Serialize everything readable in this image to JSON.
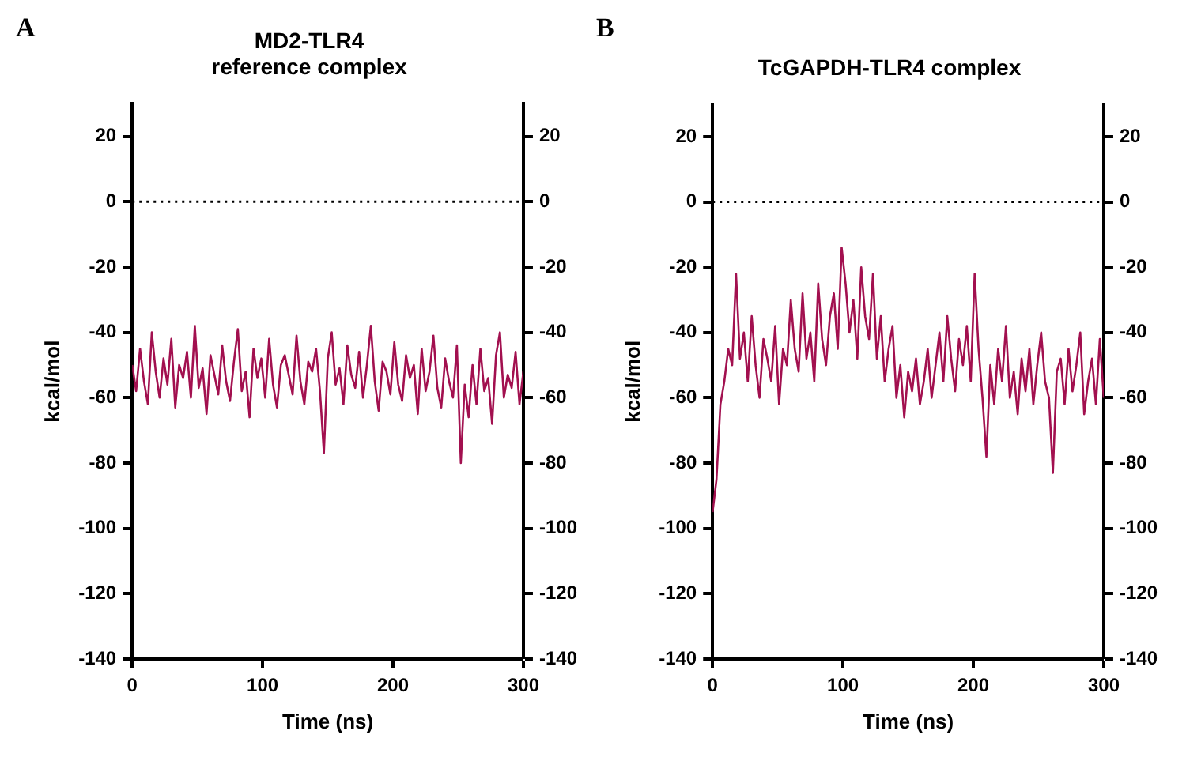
{
  "chart_data": [
    {
      "type": "line",
      "title": "MD2-TLR4\nreference complex",
      "annotations": [
        "A"
      ],
      "xlabel": "Time (ns)",
      "ylabel": "kcal/mol",
      "x": [
        0,
        3,
        6,
        9,
        12,
        15,
        18,
        21,
        24,
        27,
        30,
        33,
        36,
        39,
        42,
        45,
        48,
        51,
        54,
        57,
        60,
        63,
        66,
        69,
        72,
        75,
        78,
        81,
        84,
        87,
        90,
        93,
        96,
        99,
        102,
        105,
        108,
        111,
        114,
        117,
        120,
        123,
        126,
        129,
        132,
        135,
        138,
        141,
        144,
        147,
        150,
        153,
        156,
        159,
        162,
        165,
        168,
        171,
        174,
        177,
        180,
        183,
        186,
        189,
        192,
        195,
        198,
        201,
        204,
        207,
        210,
        213,
        216,
        219,
        222,
        225,
        228,
        231,
        234,
        237,
        240,
        243,
        246,
        249,
        252,
        255,
        258,
        261,
        264,
        267,
        270,
        273,
        276,
        279,
        282,
        285,
        288,
        291,
        294,
        297,
        300
      ],
      "series": [
        {
          "color": "#a2104f",
          "values": [
            -50,
            -58,
            -45,
            -55,
            -62,
            -40,
            -52,
            -60,
            -48,
            -56,
            -42,
            -63,
            -50,
            -54,
            -46,
            -60,
            -38,
            -57,
            -51,
            -65,
            -47,
            -53,
            -59,
            -44,
            -55,
            -61,
            -49,
            -39,
            -58,
            -52,
            -66,
            -45,
            -54,
            -48,
            -60,
            -42,
            -56,
            -63,
            -50,
            -47,
            -53,
            -59,
            -41,
            -55,
            -62,
            -49,
            -52,
            -45,
            -58,
            -77,
            -48,
            -40,
            -56,
            -51,
            -62,
            -44,
            -53,
            -57,
            -46,
            -60,
            -50,
            -38,
            -55,
            -64,
            -49,
            -52,
            -59,
            -43,
            -56,
            -61,
            -47,
            -54,
            -50,
            -65,
            -45,
            -58,
            -52,
            -41,
            -57,
            -63,
            -48,
            -55,
            -60,
            -44,
            -80,
            -56,
            -66,
            -50,
            -62,
            -45,
            -58,
            -54,
            -68,
            -47,
            -40,
            -60,
            -53,
            -57,
            -46,
            -62,
            -52
          ]
        }
      ],
      "xlim": [
        0,
        300
      ],
      "xticks": [
        0,
        100,
        200,
        300
      ],
      "ylim": [
        -140,
        30
      ],
      "yticks": [
        -140,
        -120,
        -100,
        -80,
        -60,
        -40,
        -20,
        0,
        20
      ],
      "y2lim": [
        -140,
        30
      ],
      "y2ticks": [
        -140,
        -120,
        -100,
        -80,
        -60,
        -40,
        -20,
        0,
        20
      ],
      "ref_lines": [
        {
          "axis": "y",
          "value": 0,
          "color": "#000000",
          "line_style": "dotted"
        }
      ],
      "grid": false,
      "legend": false,
      "marker": "none",
      "line_style": "solid"
    },
    {
      "type": "line",
      "title": "TcGAPDH-TLR4 complex",
      "annotations": [
        "B"
      ],
      "xlabel": "Time (ns)",
      "ylabel": "kcal/mol",
      "x": [
        0,
        3,
        6,
        9,
        12,
        15,
        18,
        21,
        24,
        27,
        30,
        33,
        36,
        39,
        42,
        45,
        48,
        51,
        54,
        57,
        60,
        63,
        66,
        69,
        72,
        75,
        78,
        81,
        84,
        87,
        90,
        93,
        96,
        99,
        102,
        105,
        108,
        111,
        114,
        117,
        120,
        123,
        126,
        129,
        132,
        135,
        138,
        141,
        144,
        147,
        150,
        153,
        156,
        159,
        162,
        165,
        168,
        171,
        174,
        177,
        180,
        183,
        186,
        189,
        192,
        195,
        198,
        201,
        204,
        207,
        210,
        213,
        216,
        219,
        222,
        225,
        228,
        231,
        234,
        237,
        240,
        243,
        246,
        249,
        252,
        255,
        258,
        261,
        264,
        267,
        270,
        273,
        276,
        279,
        282,
        285,
        288,
        291,
        294,
        297,
        300
      ],
      "series": [
        {
          "color": "#a2104f",
          "values": [
            -95,
            -85,
            -62,
            -55,
            -45,
            -50,
            -22,
            -48,
            -40,
            -55,
            -35,
            -50,
            -60,
            -42,
            -48,
            -55,
            -38,
            -62,
            -45,
            -50,
            -30,
            -45,
            -52,
            -28,
            -48,
            -40,
            -55,
            -25,
            -42,
            -50,
            -35,
            -28,
            -45,
            -14,
            -25,
            -40,
            -30,
            -48,
            -20,
            -35,
            -42,
            -22,
            -48,
            -35,
            -55,
            -45,
            -38,
            -60,
            -50,
            -66,
            -52,
            -58,
            -48,
            -62,
            -55,
            -45,
            -60,
            -50,
            -40,
            -55,
            -35,
            -48,
            -58,
            -42,
            -50,
            -38,
            -55,
            -22,
            -45,
            -60,
            -78,
            -50,
            -62,
            -45,
            -55,
            -38,
            -60,
            -52,
            -65,
            -48,
            -58,
            -45,
            -62,
            -50,
            -40,
            -55,
            -60,
            -83,
            -52,
            -48,
            -62,
            -45,
            -58,
            -50,
            -40,
            -65,
            -55,
            -48,
            -62,
            -42,
            -60
          ]
        }
      ],
      "xlim": [
        0,
        300
      ],
      "xticks": [
        0,
        100,
        200,
        300
      ],
      "ylim": [
        -140,
        30
      ],
      "yticks": [
        -140,
        -120,
        -100,
        -80,
        -60,
        -40,
        -20,
        0,
        20
      ],
      "y2lim": [
        -140,
        30
      ],
      "y2ticks": [
        -140,
        -120,
        -100,
        -80,
        -60,
        -40,
        -20,
        0,
        20
      ],
      "ref_lines": [
        {
          "axis": "y",
          "value": 0,
          "color": "#000000",
          "line_style": "dotted"
        }
      ],
      "grid": false,
      "legend": false,
      "marker": "none",
      "line_style": "solid"
    }
  ]
}
